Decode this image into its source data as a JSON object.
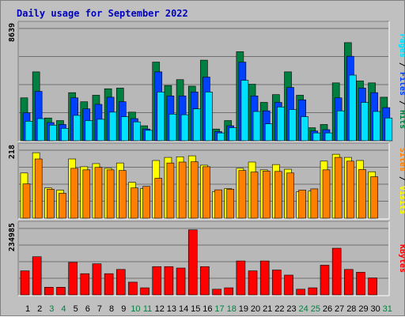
{
  "title": "Daily usage for September 2022",
  "colors": {
    "title": "#0000c0",
    "hits": "#008040",
    "files": "#0040ff",
    "pages": "#00e0ff",
    "visits": "#ffff00",
    "sites": "#ff8000",
    "kbytes": "#ff0000",
    "weekday_label": "#000000",
    "weekend_label": "#008040",
    "panel_bg": "#b8b8b8",
    "grid": "#707070",
    "bevel_light": "#ffffff",
    "bevel_dark": "#808080"
  },
  "side_labels": {
    "hits": "Hits",
    "files": "Files",
    "pages": "Pages",
    "visits": "Visits",
    "sites": "Sites",
    "kbytes": "KBytes",
    "slash": "/"
  },
  "chart_data": [
    {
      "type": "bar",
      "panel": "hits-files-pages",
      "ymax_label": "8639",
      "ylim": [
        0,
        8639
      ],
      "categories": [
        "1",
        "2",
        "3",
        "4",
        "5",
        "6",
        "7",
        "8",
        "9",
        "10",
        "11",
        "12",
        "13",
        "14",
        "15",
        "16",
        "17",
        "18",
        "19",
        "20",
        "21",
        "22",
        "23",
        "24",
        "25",
        "26",
        "27",
        "28",
        "29",
        "30",
        "31"
      ],
      "series": [
        {
          "name": "Hits",
          "values": [
            3300,
            5300,
            1750,
            1550,
            3700,
            3000,
            3500,
            4000,
            4050,
            2200,
            1150,
            6050,
            4250,
            4700,
            4200,
            6200,
            900,
            1550,
            6850,
            4350,
            2950,
            3550,
            5300,
            3500,
            1000,
            1250,
            4450,
            7550,
            4600,
            4450,
            3350
          ]
        },
        {
          "name": "Files",
          "values": [
            2150,
            3800,
            1400,
            1250,
            3300,
            2450,
            2800,
            3350,
            3000,
            1700,
            900,
            5300,
            3450,
            3450,
            3750,
            4900,
            700,
            1150,
            6050,
            3450,
            2300,
            2950,
            4100,
            3150,
            750,
            850,
            3300,
            6500,
            4050,
            3700,
            2550
          ]
        },
        {
          "name": "Pages",
          "values": [
            1500,
            1700,
            1200,
            950,
            1950,
            1550,
            1650,
            2200,
            1850,
            1450,
            800,
            3750,
            2050,
            2000,
            2450,
            3750,
            600,
            1000,
            4650,
            2250,
            1300,
            2600,
            2400,
            1850,
            600,
            600,
            2300,
            5050,
            2950,
            2250,
            1750
          ]
        }
      ]
    },
    {
      "type": "bar",
      "panel": "visits-sites",
      "ymax_label": "218",
      "ylim": [
        0,
        218
      ],
      "categories": [
        "1",
        "2",
        "3",
        "4",
        "5",
        "6",
        "7",
        "8",
        "9",
        "10",
        "11",
        "12",
        "13",
        "14",
        "15",
        "16",
        "17",
        "18",
        "19",
        "20",
        "21",
        "22",
        "23",
        "24",
        "25",
        "26",
        "27",
        "28",
        "29",
        "30",
        "31"
      ],
      "series": [
        {
          "name": "Visits",
          "values": [
            145,
            210,
            97,
            90,
            190,
            165,
            175,
            160,
            177,
            115,
            95,
            185,
            195,
            197,
            200,
            170,
            85,
            95,
            160,
            180,
            155,
            172,
            157,
            85,
            87,
            183,
            205,
            195,
            185,
            149,
            0
          ]
        },
        {
          "name": "Sites",
          "values": [
            110,
            190,
            93,
            80,
            160,
            155,
            163,
            155,
            153,
            97,
            102,
            128,
            177,
            180,
            181,
            165,
            91,
            93,
            153,
            148,
            151,
            150,
            145,
            90,
            94,
            155,
            195,
            183,
            156,
            133,
            0
          ]
        }
      ]
    },
    {
      "type": "bar",
      "panel": "kbytes",
      "ymax_label": "234985",
      "ylim": [
        0,
        234985
      ],
      "categories": [
        "1",
        "2",
        "3",
        "4",
        "5",
        "6",
        "7",
        "8",
        "9",
        "10",
        "11",
        "12",
        "13",
        "14",
        "15",
        "16",
        "17",
        "18",
        "19",
        "20",
        "21",
        "22",
        "23",
        "24",
        "25",
        "26",
        "27",
        "28",
        "29",
        "30",
        "31"
      ],
      "series": [
        {
          "name": "KBytes",
          "values": [
            85000,
            135000,
            27000,
            27000,
            115000,
            75000,
            110000,
            75000,
            90000,
            45000,
            25000,
            100000,
            100000,
            95000,
            230000,
            100000,
            20000,
            25000,
            120000,
            85000,
            120000,
            88000,
            70000,
            20000,
            25000,
            105000,
            165000,
            90000,
            80000,
            60000,
            0
          ]
        }
      ]
    }
  ],
  "weekend_days": [
    3,
    4,
    10,
    11,
    17,
    18,
    24,
    25,
    31
  ]
}
